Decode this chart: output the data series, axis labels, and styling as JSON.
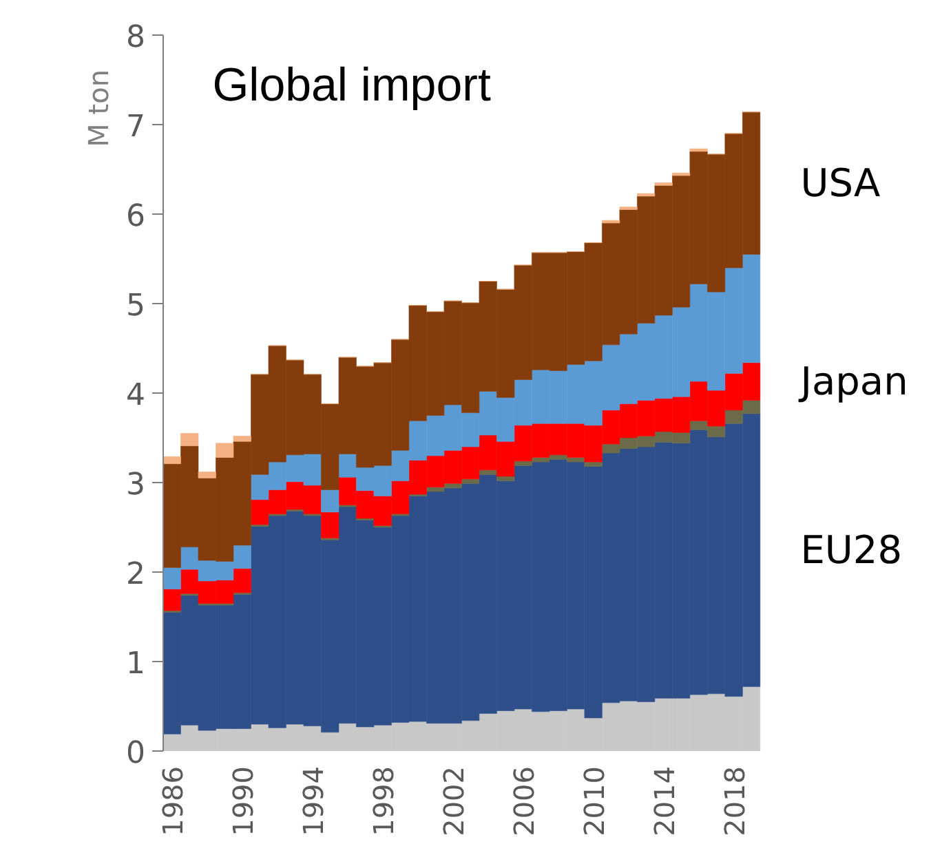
{
  "chart_data": {
    "type": "bar",
    "stacked": true,
    "title": "Global import",
    "ylabel": "M ton",
    "categories": [
      "1986",
      null,
      null,
      null,
      "1990",
      null,
      null,
      null,
      "1994",
      null,
      null,
      null,
      "1998",
      null,
      null,
      null,
      "2002",
      null,
      null,
      null,
      "2006",
      null,
      null,
      null,
      "2010",
      null,
      null,
      null,
      "2014",
      null,
      null,
      null,
      "2018",
      null
    ],
    "ylim": [
      0,
      8
    ],
    "yticks": [
      0,
      1,
      2,
      3,
      4,
      5,
      6,
      7,
      8
    ],
    "series": [
      {
        "color": "#c8c8c8",
        "values": [
          0.19,
          0.29,
          0.23,
          0.25,
          0.25,
          0.3,
          0.26,
          0.3,
          0.28,
          0.21,
          0.31,
          0.27,
          0.29,
          0.32,
          0.33,
          0.31,
          0.31,
          0.34,
          0.42,
          0.45,
          0.47,
          0.44,
          0.45,
          0.47,
          0.37,
          0.54,
          0.56,
          0.55,
          0.59,
          0.59,
          0.63,
          0.64,
          0.61,
          0.72
        ]
      },
      {
        "name": "EU28",
        "color": "#2f4f8b",
        "values": [
          1.36,
          1.45,
          1.4,
          1.38,
          1.5,
          2.21,
          2.37,
          2.38,
          2.35,
          2.15,
          2.42,
          2.31,
          2.21,
          2.31,
          2.52,
          2.59,
          2.63,
          2.65,
          2.67,
          2.57,
          2.72,
          2.79,
          2.81,
          2.76,
          2.81,
          2.79,
          2.82,
          2.85,
          2.86,
          2.85,
          2.96,
          2.87,
          3.05,
          3.05
        ]
      },
      {
        "color": "#6b6b4a",
        "values": [
          0.02,
          0.02,
          0.02,
          0.02,
          0.02,
          0.02,
          0.02,
          0.02,
          0.02,
          0.02,
          0.02,
          0.02,
          0.02,
          0.02,
          0.02,
          0.05,
          0.05,
          0.05,
          0.05,
          0.05,
          0.05,
          0.05,
          0.05,
          0.05,
          0.05,
          0.1,
          0.12,
          0.12,
          0.12,
          0.12,
          0.1,
          0.12,
          0.15,
          0.15
        ]
      },
      {
        "name": "Japan",
        "color": "#ff0000",
        "values": [
          0.24,
          0.27,
          0.25,
          0.26,
          0.27,
          0.28,
          0.27,
          0.31,
          0.32,
          0.29,
          0.31,
          0.31,
          0.33,
          0.37,
          0.38,
          0.35,
          0.37,
          0.36,
          0.39,
          0.39,
          0.4,
          0.38,
          0.35,
          0.38,
          0.41,
          0.38,
          0.38,
          0.4,
          0.37,
          0.4,
          0.44,
          0.4,
          0.41,
          0.42
        ]
      },
      {
        "color": "#5b9bd5",
        "values": [
          0.24,
          0.25,
          0.23,
          0.21,
          0.26,
          0.28,
          0.31,
          0.3,
          0.35,
          0.25,
          0.26,
          0.26,
          0.34,
          0.34,
          0.44,
          0.45,
          0.51,
          0.38,
          0.49,
          0.49,
          0.51,
          0.6,
          0.59,
          0.66,
          0.72,
          0.73,
          0.78,
          0.86,
          0.93,
          1.0,
          1.09,
          1.1,
          1.18,
          1.21
        ]
      },
      {
        "name": "USA",
        "color": "#843c0c",
        "values": [
          1.16,
          1.13,
          0.92,
          1.16,
          1.16,
          1.12,
          1.3,
          1.06,
          0.89,
          0.96,
          1.08,
          1.13,
          1.15,
          1.24,
          1.29,
          1.16,
          1.16,
          1.23,
          1.23,
          1.21,
          1.28,
          1.31,
          1.32,
          1.26,
          1.32,
          1.36,
          1.39,
          1.42,
          1.45,
          1.47,
          1.48,
          1.54,
          1.5,
          1.59
        ]
      },
      {
        "color": "#f4b183",
        "values": [
          0.08,
          0.14,
          0.07,
          0.16,
          0.06,
          0,
          0,
          0,
          0,
          0,
          0,
          0,
          0,
          0,
          0,
          0,
          0,
          0,
          0,
          0,
          0,
          0,
          0,
          0,
          0,
          0.03,
          0.03,
          0.03,
          0.03,
          0.03,
          0.03,
          0,
          0,
          0
        ]
      }
    ]
  }
}
